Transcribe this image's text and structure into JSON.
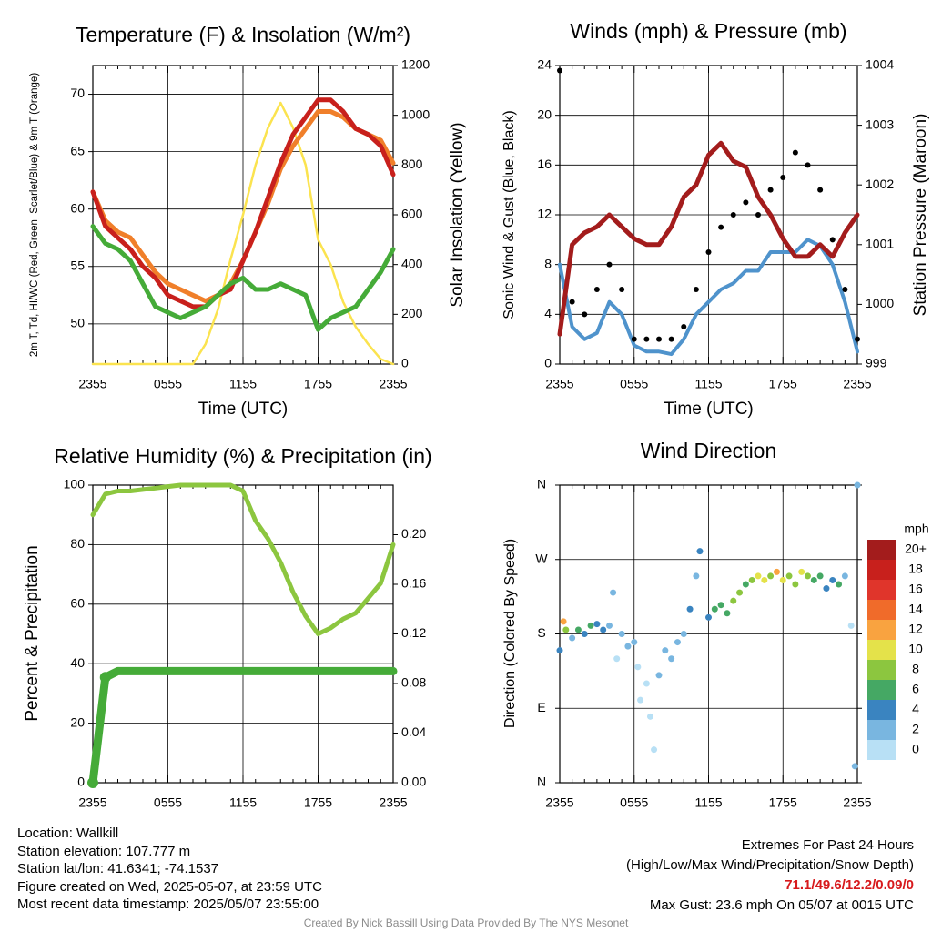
{
  "footer": {
    "location": "Location: Wallkill",
    "elevation": "Station elevation: 107.777 m",
    "latlon": "Station lat/lon: 41.6341; -74.1537",
    "created": "Figure created on Wed, 2025-05-07, at 23:59 UTC",
    "recent": "Most recent data timestamp: 2025/05/07 23:55:00",
    "extremes_title": "Extremes For Past 24 Hours",
    "extremes_sub": "(High/Low/Max Wind/Precipitation/Snow Depth)",
    "extremes_values": "71.1/49.6/12.2/0.09/0",
    "max_gust": "Max Gust: 23.6 mph On 05/07 at 0015 UTC",
    "credit": "Created By Nick Bassill Using Data Provided By The NYS Mesonet"
  },
  "chart_data": [
    {
      "type": "line",
      "title": "Temperature (F) & Insolation (W/m²)",
      "xlabel": "Time (UTC)",
      "ylabel": "2m T, Td, HI/WC (Red, Green, Scarlet/Blue) & 9m T (Orange)",
      "y2label": "Solar Insolation (Yellow)",
      "x_ticks": [
        "2355",
        "0555",
        "1155",
        "1755",
        "2355"
      ],
      "ylim": [
        46.5,
        72.5
      ],
      "y_ticks": [
        50,
        55,
        60,
        65,
        70
      ],
      "y2lim": [
        0,
        1200
      ],
      "y2_ticks": [
        0,
        200,
        400,
        600,
        800,
        1000,
        1200
      ],
      "grid": true,
      "x_hours": [
        0,
        1,
        2,
        3,
        4,
        5,
        6,
        7,
        8,
        9,
        10,
        11,
        12,
        13,
        14,
        15,
        16,
        17,
        18,
        19,
        20,
        21,
        22,
        23,
        24
      ],
      "series": [
        {
          "name": "2m T",
          "color": "#c8201c",
          "values": [
            61.5,
            58.5,
            57.5,
            56.5,
            55,
            54,
            52.5,
            52,
            51.5,
            51.5,
            52.5,
            53,
            55.5,
            58,
            61,
            64,
            66.5,
            68,
            69.5,
            69.5,
            68.5,
            67,
            66.5,
            65.5,
            63
          ]
        },
        {
          "name": "9m T",
          "color": "#f07f2a",
          "values": [
            61.5,
            59,
            58,
            57.5,
            56,
            54.5,
            53.5,
            53,
            52.5,
            52,
            52.5,
            53.5,
            55.5,
            58,
            60.5,
            63.5,
            65.5,
            67,
            68.5,
            68.5,
            68,
            67,
            66.5,
            66,
            64
          ]
        },
        {
          "name": "Td",
          "color": "#45ab38",
          "values": [
            58.5,
            57,
            56.5,
            55.5,
            53.5,
            51.5,
            51,
            50.5,
            51,
            51.5,
            52.5,
            53.5,
            54,
            53,
            53,
            53.5,
            53,
            52.5,
            49.5,
            50.5,
            51,
            51.5,
            53,
            54.5,
            56.5
          ]
        },
        {
          "name": "Solar Insolation",
          "color": "#fbe34f",
          "axis": "y2",
          "values": [
            0,
            0,
            0,
            0,
            0,
            0,
            0,
            0,
            0,
            80,
            220,
            420,
            600,
            800,
            950,
            1050,
            950,
            800,
            500,
            400,
            250,
            150,
            80,
            20,
            0
          ]
        }
      ]
    },
    {
      "type": "line",
      "title": "Winds (mph) & Pressure (mb)",
      "xlabel": "Time (UTC)",
      "ylabel": "Sonic Wind & Gust (Blue, Black)",
      "y2label": "Station Pressure (Maroon)",
      "x_ticks": [
        "2355",
        "0555",
        "1155",
        "1755",
        "2355"
      ],
      "ylim": [
        0,
        24
      ],
      "y_ticks": [
        0,
        4,
        8,
        12,
        16,
        20,
        24
      ],
      "y2lim": [
        999,
        1004
      ],
      "y2_ticks": [
        999,
        1000,
        1001,
        1002,
        1003,
        1004
      ],
      "grid": true,
      "x_hours": [
        0,
        1,
        2,
        3,
        4,
        5,
        6,
        7,
        8,
        9,
        10,
        11,
        12,
        13,
        14,
        15,
        16,
        17,
        18,
        19,
        20,
        21,
        22,
        23,
        24
      ],
      "series": [
        {
          "name": "Sonic Wind",
          "color": "#4f93cc",
          "values": [
            8,
            3,
            2,
            2.5,
            5,
            4,
            1.5,
            1,
            1,
            0.8,
            2,
            4,
            5,
            6,
            6.5,
            7.5,
            7.5,
            9,
            9,
            9,
            10,
            9.5,
            8,
            5,
            1
          ]
        },
        {
          "name": "Gust",
          "color": "#000000",
          "values": [
            23.6,
            5,
            4,
            6,
            8,
            6,
            2,
            2,
            2,
            2,
            3,
            6,
            9,
            11,
            12,
            13,
            12,
            14,
            15,
            17,
            16,
            14,
            10,
            6,
            2
          ]
        },
        {
          "name": "Station Pressure",
          "color": "#a31c1c",
          "axis": "y2",
          "values": [
            999.5,
            1001,
            1001.2,
            1001.3,
            1001.5,
            1001.3,
            1001.1,
            1001,
            1001,
            1001.3,
            1001.8,
            1002,
            1002.5,
            1002.7,
            1002.4,
            1002.3,
            1001.8,
            1001.5,
            1001.1,
            1000.8,
            1000.8,
            1001,
            1000.8,
            1001.2,
            1001.5
          ]
        }
      ]
    },
    {
      "type": "line",
      "title": "Relative Humidity (%) & Precipitation (in)",
      "ylabel": "Percent & Precipitation",
      "x_ticks": [
        "2355",
        "0555",
        "1155",
        "1755",
        "2355"
      ],
      "ylim": [
        0,
        100
      ],
      "y_ticks": [
        0,
        20,
        40,
        60,
        80,
        100
      ],
      "y2lim": [
        0,
        0.24
      ],
      "y2_ticks": [
        "0.00",
        "0.04",
        "0.08",
        "0.12",
        "0.16",
        "0.20"
      ],
      "grid": true,
      "x_hours": [
        0,
        1,
        2,
        3,
        4,
        5,
        6,
        7,
        8,
        9,
        10,
        11,
        12,
        13,
        14,
        15,
        16,
        17,
        18,
        19,
        20,
        21,
        22,
        23,
        24
      ],
      "series": [
        {
          "name": "Relative Humidity",
          "color": "#8cc63f",
          "values": [
            90,
            97,
            98,
            98,
            98.5,
            99,
            99.5,
            100,
            100,
            100,
            100,
            100,
            98,
            88,
            82,
            74,
            64,
            56,
            50,
            52,
            55,
            57,
            62,
            67,
            80
          ]
        },
        {
          "name": "Precipitation",
          "color": "#45ab38",
          "axis": "y2",
          "values": [
            0,
            0.085,
            0.09,
            0.09,
            0.09,
            0.09,
            0.09,
            0.09,
            0.09,
            0.09,
            0.09,
            0.09,
            0.09,
            0.09,
            0.09,
            0.09,
            0.09,
            0.09,
            0.09,
            0.09,
            0.09,
            0.09,
            0.09,
            0.09,
            0.09
          ]
        }
      ]
    },
    {
      "type": "scatter",
      "title": "Wind Direction",
      "ylabel": "Direction (Colored By Speed)",
      "x_ticks": [
        "2355",
        "0555",
        "1155",
        "1755",
        "2355"
      ],
      "y_ticks": [
        "N",
        "E",
        "S",
        "W",
        "N"
      ],
      "ylim": [
        0,
        360
      ],
      "grid": true,
      "legend": {
        "title": "mph",
        "placement": "right",
        "labels": [
          "20+",
          "18",
          "16",
          "14",
          "12",
          "10",
          "8",
          "6",
          "4",
          "2",
          "0"
        ],
        "colors": [
          "#a31c1c",
          "#c8201c",
          "#e0352b",
          "#f06b2a",
          "#f9a340",
          "#e4e24a",
          "#8cc63f",
          "#45a864",
          "#3a84c0",
          "#79b6e0",
          "#b8e0f5"
        ]
      },
      "points": [
        [
          0.0,
          160,
          4
        ],
        [
          0.3,
          195,
          12
        ],
        [
          0.5,
          185,
          8
        ],
        [
          1.0,
          175,
          3
        ],
        [
          1.5,
          185,
          6
        ],
        [
          2.0,
          180,
          4
        ],
        [
          2.5,
          190,
          6
        ],
        [
          3.0,
          192,
          5
        ],
        [
          3.5,
          185,
          4
        ],
        [
          4.0,
          190,
          3
        ],
        [
          4.3,
          230,
          2
        ],
        [
          4.6,
          150,
          1
        ],
        [
          5.0,
          180,
          3
        ],
        [
          5.5,
          165,
          2
        ],
        [
          6.0,
          170,
          2
        ],
        [
          6.3,
          140,
          1
        ],
        [
          6.5,
          100,
          1
        ],
        [
          7.0,
          120,
          1
        ],
        [
          7.3,
          80,
          1
        ],
        [
          7.6,
          40,
          1
        ],
        [
          8.0,
          130,
          2
        ],
        [
          8.5,
          160,
          2
        ],
        [
          9.0,
          150,
          3
        ],
        [
          9.5,
          170,
          3
        ],
        [
          10.0,
          180,
          3
        ],
        [
          10.5,
          210,
          4
        ],
        [
          11.0,
          250,
          3
        ],
        [
          11.3,
          280,
          4
        ],
        [
          12.0,
          200,
          5
        ],
        [
          12.5,
          210,
          6
        ],
        [
          13.0,
          215,
          7
        ],
        [
          13.5,
          205,
          7
        ],
        [
          14.0,
          220,
          8
        ],
        [
          14.5,
          230,
          8
        ],
        [
          15.0,
          240,
          6
        ],
        [
          15.5,
          245,
          9
        ],
        [
          16.0,
          250,
          10
        ],
        [
          16.5,
          245,
          11
        ],
        [
          17.0,
          250,
          9
        ],
        [
          17.5,
          255,
          12
        ],
        [
          18.0,
          245,
          10
        ],
        [
          18.5,
          250,
          8
        ],
        [
          19.0,
          240,
          9
        ],
        [
          19.5,
          255,
          10
        ],
        [
          20.0,
          250,
          8
        ],
        [
          20.5,
          245,
          6
        ],
        [
          21.0,
          250,
          7
        ],
        [
          21.5,
          235,
          4
        ],
        [
          22.0,
          245,
          5
        ],
        [
          22.5,
          240,
          6
        ],
        [
          23.0,
          250,
          3
        ],
        [
          23.5,
          190,
          1
        ],
        [
          23.8,
          20,
          2
        ],
        [
          24.0,
          360,
          2
        ]
      ]
    }
  ]
}
